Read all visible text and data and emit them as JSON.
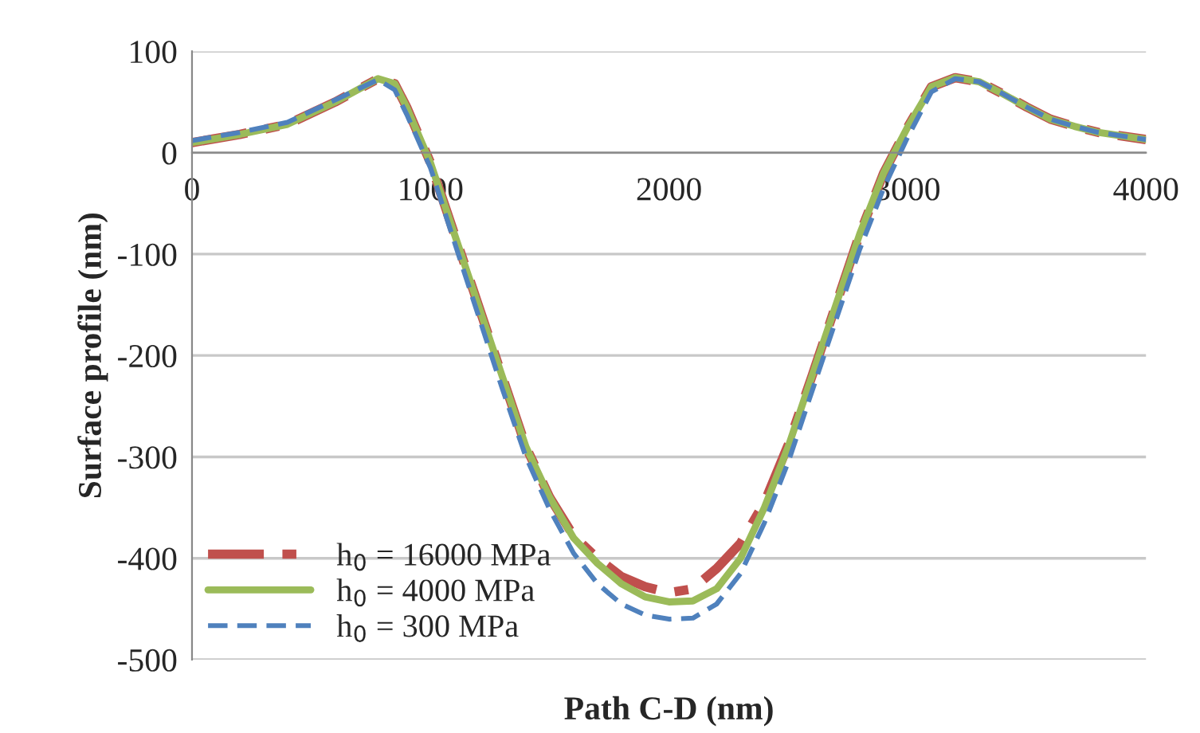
{
  "chart_data": {
    "type": "line",
    "xlabel": "Path C-D (nm)",
    "ylabel": "Surface profile (nm)",
    "xlim": [
      0,
      4000
    ],
    "xticks": [
      0,
      1000,
      2000,
      3000,
      4000
    ],
    "ylim": [
      -500,
      100
    ],
    "yticks": [
      -500,
      -400,
      -300,
      -200,
      -100,
      0,
      100
    ],
    "grid": "y",
    "legend": "bottom left",
    "marker": "none",
    "x": [
      0,
      200,
      400,
      600,
      780,
      850,
      900,
      1000,
      1100,
      1200,
      1300,
      1400,
      1500,
      1600,
      1700,
      1800,
      1900,
      2000,
      2100,
      2200,
      2300,
      2400,
      2500,
      2600,
      2700,
      2800,
      2900,
      3000,
      3100,
      3200,
      3300,
      3400,
      3500,
      3600,
      3700,
      3800,
      4000
    ],
    "series": [
      {
        "name": "h$_{0}$ = 16000 MPa",
        "color": "#c0504d",
        "line_style": "dashdot",
        "values": [
          10,
          18,
          28,
          50,
          73,
          68,
          45,
          -10,
          -80,
          -150,
          -220,
          -290,
          -340,
          -378,
          -400,
          -418,
          -428,
          -434,
          -430,
          -410,
          -385,
          -345,
          -288,
          -220,
          -150,
          -80,
          -20,
          25,
          65,
          74,
          70,
          58,
          45,
          33,
          26,
          20,
          13
        ]
      },
      {
        "name": "h$_{0}$ = 4000 MPa",
        "color": "#9bbb59",
        "line_style": "solid",
        "values": [
          10,
          18,
          28,
          50,
          73,
          68,
          45,
          -10,
          -80,
          -150,
          -220,
          -290,
          -340,
          -380,
          -405,
          -425,
          -438,
          -443,
          -442,
          -430,
          -400,
          -350,
          -290,
          -220,
          -150,
          -80,
          -20,
          25,
          65,
          74,
          70,
          58,
          45,
          33,
          26,
          20,
          13
        ]
      },
      {
        "name": "h$_{0}$ = 300 MPa",
        "color": "#4f81bd",
        "line_style": "dashed",
        "values": [
          12,
          20,
          30,
          52,
          72,
          62,
          38,
          -15,
          -88,
          -160,
          -232,
          -300,
          -352,
          -395,
          -425,
          -445,
          -456,
          -460,
          -459,
          -445,
          -415,
          -365,
          -305,
          -235,
          -165,
          -95,
          -35,
          15,
          60,
          73,
          70,
          58,
          45,
          33,
          26,
          20,
          13
        ]
      }
    ]
  }
}
